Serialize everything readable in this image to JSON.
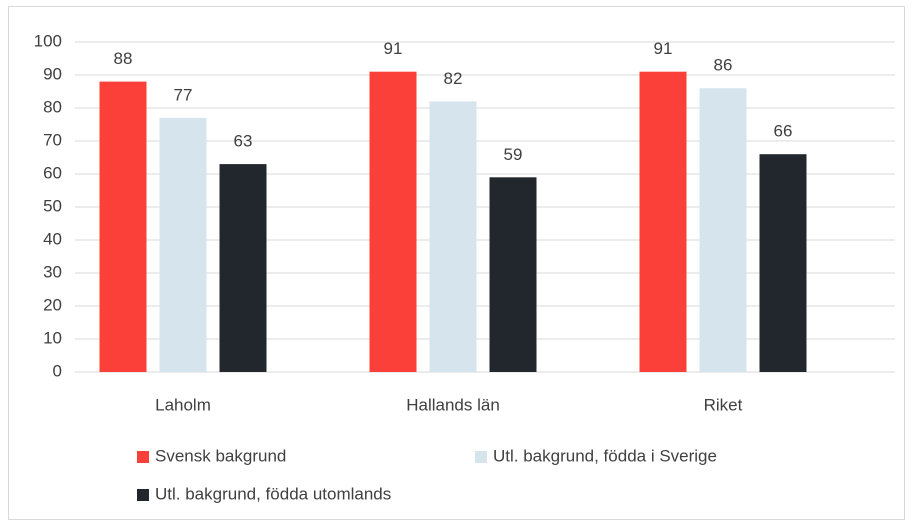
{
  "chart_data": {
    "type": "bar",
    "categories": [
      "Laholm",
      "Hallands län",
      "Riket"
    ],
    "series": [
      {
        "name": "Svensk bakgrund",
        "color": "#fb4039",
        "values": [
          88,
          91,
          91
        ]
      },
      {
        "name": "Utl. bakgrund, födda i Sverige",
        "color": "#d6e4ee",
        "values": [
          77,
          82,
          86
        ]
      },
      {
        "name": "Utl. bakgrund, födda utomlands",
        "color": "#22272e",
        "values": [
          63,
          59,
          66
        ]
      }
    ],
    "ylim": [
      0,
      100
    ],
    "yticks": [
      0,
      10,
      20,
      30,
      40,
      50,
      60,
      70,
      80,
      90,
      100
    ],
    "grid": true,
    "legend": "bottom"
  }
}
